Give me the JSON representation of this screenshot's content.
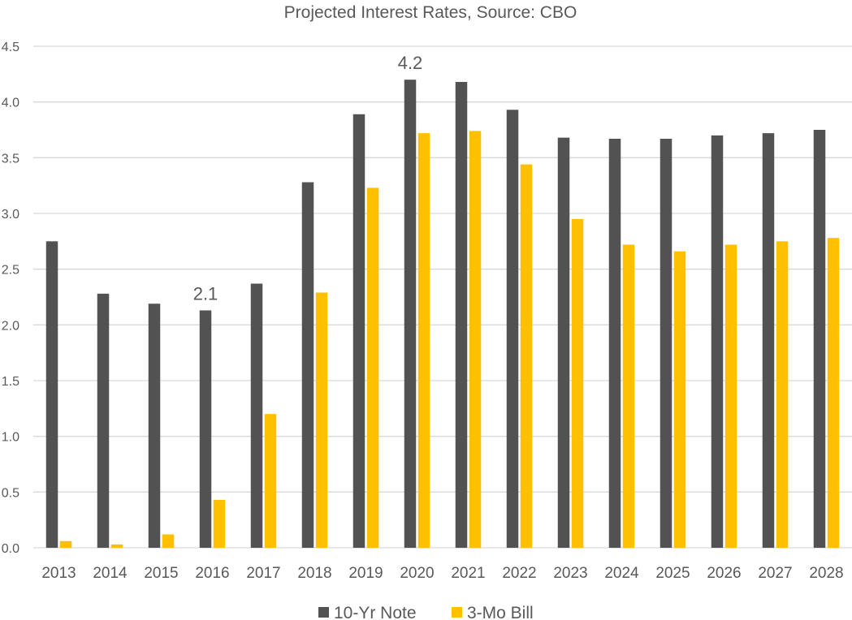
{
  "chart_data": {
    "type": "bar",
    "title": "Projected Interest Rates, Source: CBO",
    "xlabel": "",
    "ylabel": "",
    "ylim": [
      0,
      4.5
    ],
    "yticks": [
      "0.0",
      "0.5",
      "1.0",
      "1.5",
      "2.0",
      "2.5",
      "3.0",
      "3.5",
      "4.0",
      "4.5"
    ],
    "grid": true,
    "legend_position": "bottom",
    "categories": [
      "2013",
      "2014",
      "2015",
      "2016",
      "2017",
      "2018",
      "2019",
      "2020",
      "2021",
      "2022",
      "2023",
      "2024",
      "2025",
      "2026",
      "2027",
      "2028"
    ],
    "series": [
      {
        "name": "10-Yr Note",
        "color": "#525252",
        "values": [
          2.75,
          2.28,
          2.19,
          2.13,
          2.37,
          3.28,
          3.89,
          4.2,
          4.18,
          3.93,
          3.68,
          3.67,
          3.67,
          3.7,
          3.72,
          3.75
        ]
      },
      {
        "name": "3-Mo Bill",
        "color": "#FFC000",
        "values": [
          0.06,
          0.03,
          0.12,
          0.43,
          1.2,
          2.29,
          3.23,
          3.72,
          3.74,
          3.44,
          2.95,
          2.72,
          2.66,
          2.72,
          2.75,
          2.78
        ]
      }
    ],
    "annotations": [
      {
        "category": "2016",
        "series": "10-Yr Note",
        "text": "2.1"
      },
      {
        "category": "2020",
        "series": "10-Yr Note",
        "text": "4.2"
      }
    ]
  }
}
